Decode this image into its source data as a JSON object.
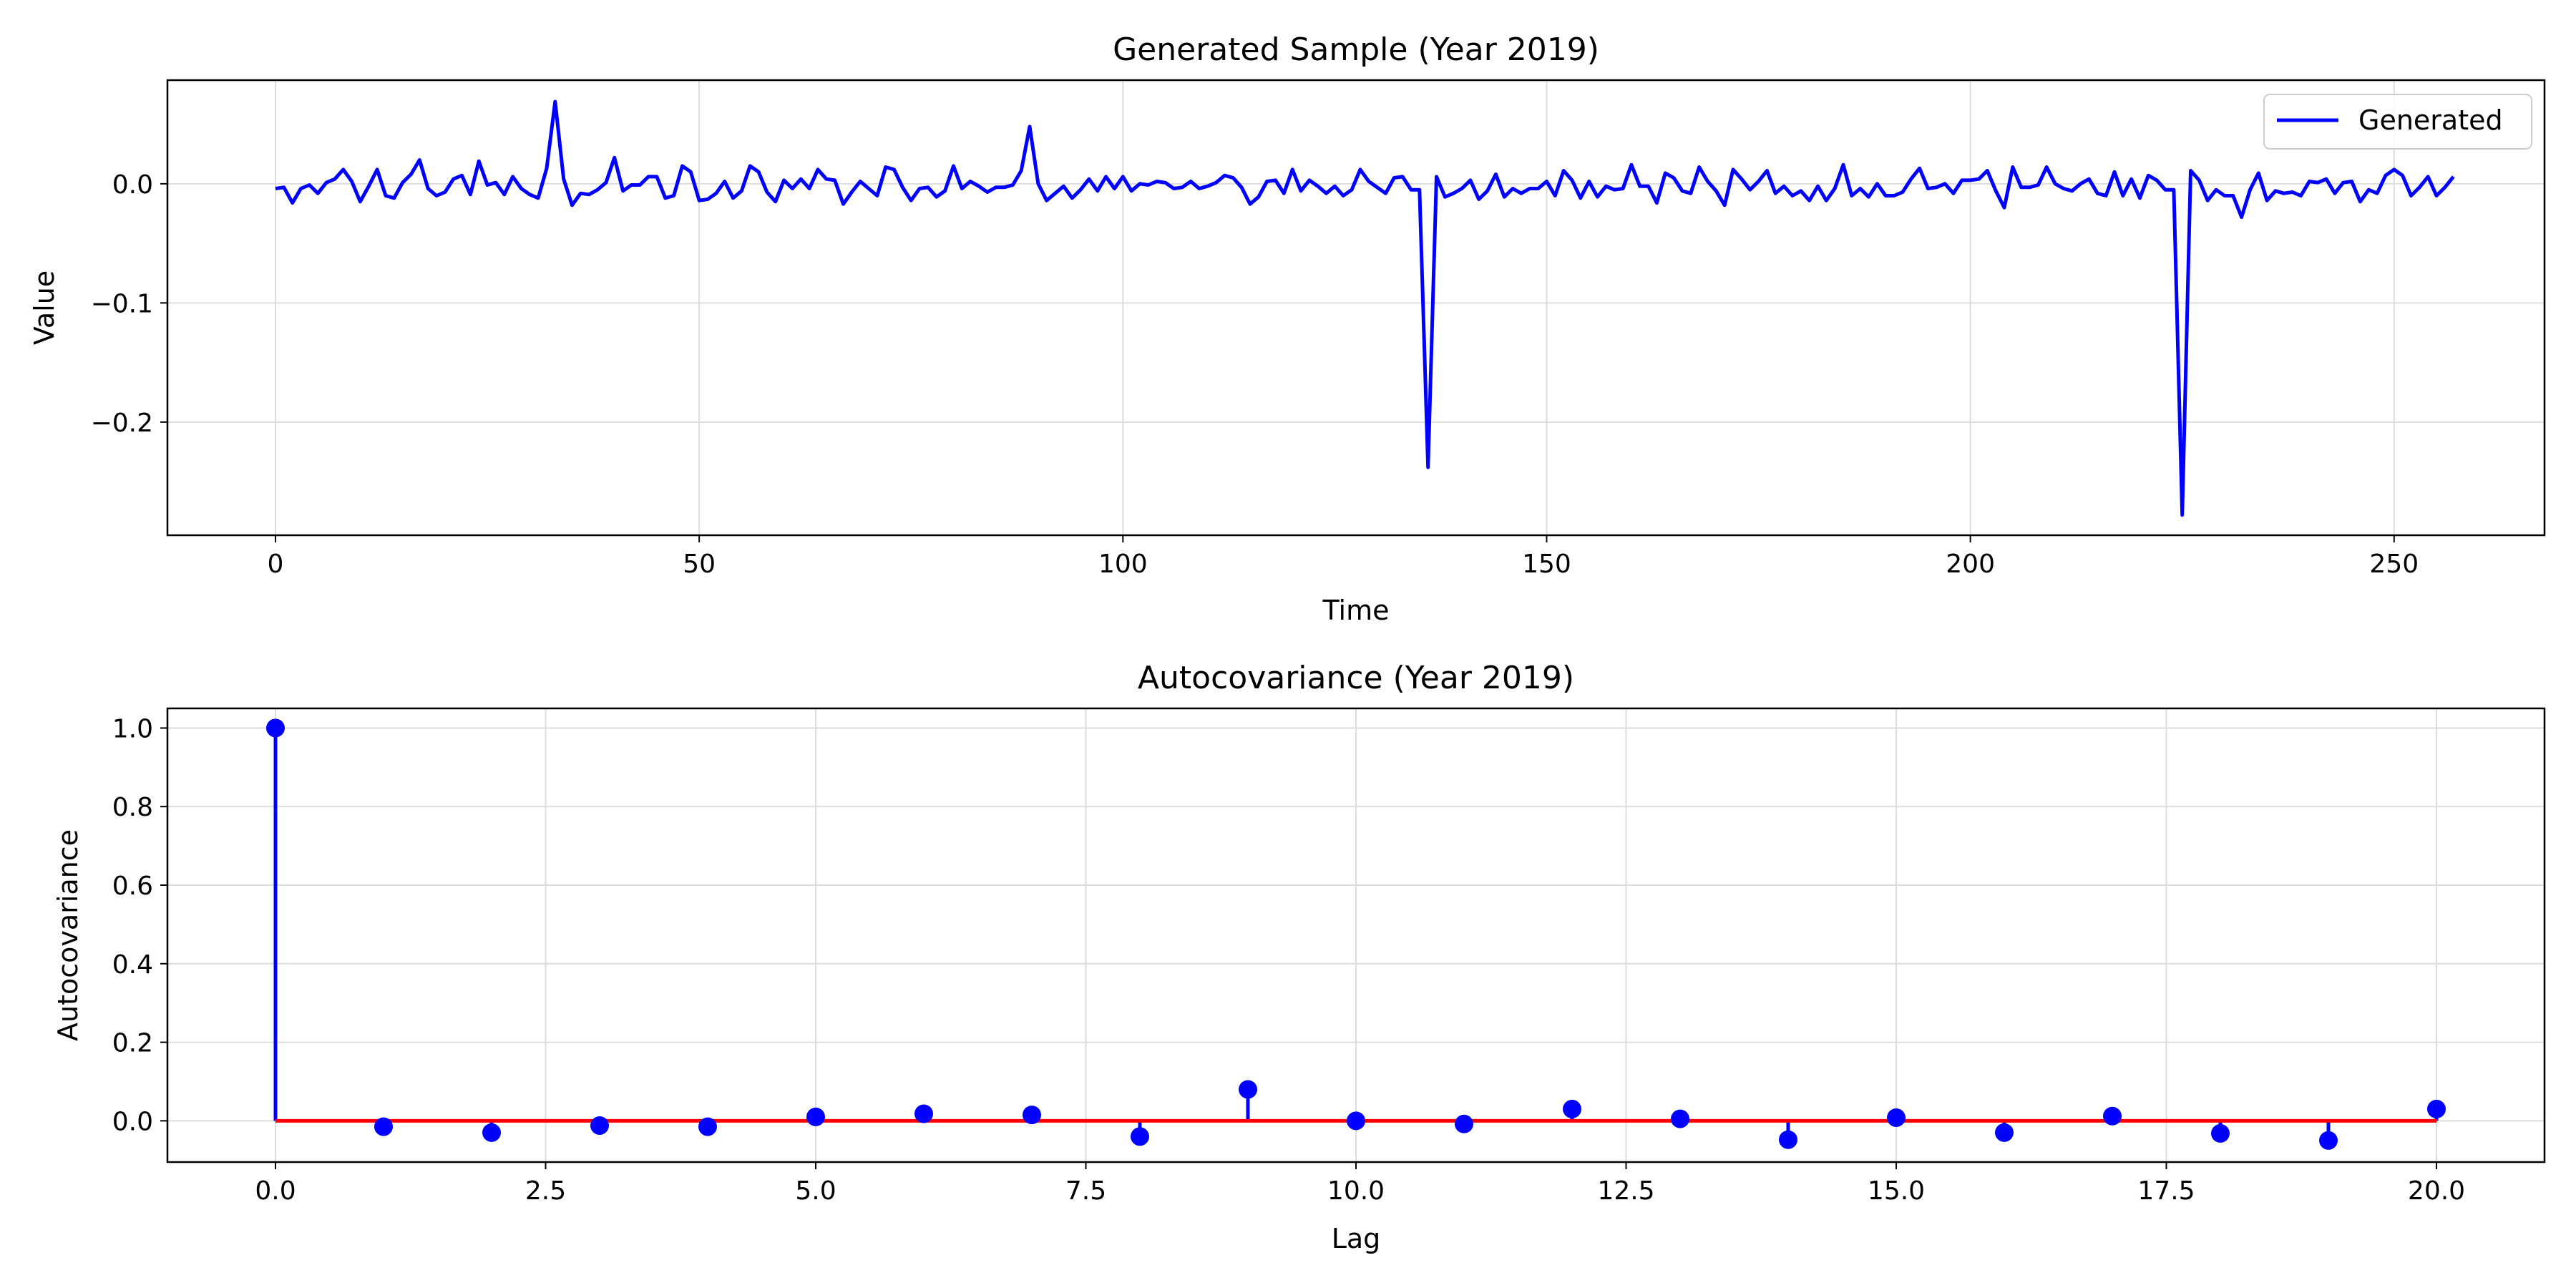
{
  "chart_data": [
    {
      "type": "line",
      "title": "Generated Sample (Year 2019)",
      "xlabel": "Time",
      "ylabel": "Value",
      "xlim": [
        -12.75,
        267.75
      ],
      "ylim": [
        -0.295,
        0.087
      ],
      "xticks": [
        0,
        50,
        100,
        150,
        200,
        250
      ],
      "yticks": [
        0.0,
        -0.1,
        -0.2
      ],
      "ytick_labels": [
        "0.0",
        "−0.1",
        "−0.2"
      ],
      "grid": true,
      "legend_position": "top-right",
      "series": [
        {
          "name": "Generated",
          "color": "#0000ff",
          "x_start": 0,
          "x_step": 1,
          "values": [
            -0.004,
            -0.003,
            -0.016,
            -0.004,
            -0.001,
            -0.008,
            0.001,
            0.004,
            0.012,
            0.002,
            -0.015,
            -0.002,
            0.012,
            -0.01,
            -0.012,
            0.001,
            0.008,
            0.02,
            -0.004,
            -0.01,
            -0.007,
            0.004,
            0.007,
            -0.009,
            0.019,
            -0.001,
            0.001,
            -0.009,
            0.006,
            -0.004,
            -0.009,
            -0.012,
            0.013,
            0.069,
            0.004,
            -0.018,
            -0.008,
            -0.009,
            -0.005,
            0.001,
            0.022,
            -0.006,
            -0.001,
            -0.001,
            0.006,
            0.006,
            -0.012,
            -0.01,
            0.015,
            0.01,
            -0.014,
            -0.013,
            -0.008,
            0.002,
            -0.012,
            -0.006,
            0.015,
            0.01,
            -0.007,
            -0.015,
            0.003,
            -0.004,
            0.004,
            -0.004,
            0.012,
            0.004,
            0.003,
            -0.017,
            -0.007,
            0.002,
            -0.004,
            -0.01,
            0.014,
            0.012,
            -0.003,
            -0.014,
            -0.004,
            -0.003,
            -0.011,
            -0.006,
            0.015,
            -0.004,
            0.002,
            -0.002,
            -0.007,
            -0.003,
            -0.003,
            -0.001,
            0.011,
            0.048,
            0.0,
            -0.014,
            -0.008,
            -0.002,
            -0.012,
            -0.005,
            0.004,
            -0.006,
            0.006,
            -0.004,
            0.006,
            -0.006,
            0.0,
            -0.001,
            0.002,
            0.001,
            -0.004,
            -0.003,
            0.002,
            -0.004,
            -0.002,
            0.001,
            0.007,
            0.005,
            -0.003,
            -0.017,
            -0.011,
            0.002,
            0.003,
            -0.008,
            0.012,
            -0.006,
            0.003,
            -0.002,
            -0.008,
            -0.002,
            -0.01,
            -0.005,
            0.012,
            0.002,
            -0.003,
            -0.008,
            0.005,
            0.006,
            -0.005,
            -0.005,
            -0.238,
            0.006,
            -0.011,
            -0.008,
            -0.004,
            0.003,
            -0.013,
            -0.006,
            0.008,
            -0.011,
            -0.004,
            -0.008,
            -0.004,
            -0.004,
            0.002,
            -0.01,
            0.011,
            0.003,
            -0.012,
            0.002,
            -0.011,
            -0.002,
            -0.005,
            -0.004,
            0.016,
            -0.002,
            -0.002,
            -0.016,
            0.009,
            0.005,
            -0.006,
            -0.008,
            0.014,
            0.002,
            -0.006,
            -0.018,
            0.012,
            0.004,
            -0.005,
            0.002,
            0.011,
            -0.008,
            -0.002,
            -0.01,
            -0.006,
            -0.014,
            -0.002,
            -0.014,
            -0.004,
            0.016,
            -0.01,
            -0.004,
            -0.011,
            0.0,
            -0.01,
            -0.01,
            -0.007,
            0.004,
            0.013,
            -0.004,
            -0.003,
            0.0,
            -0.008,
            0.003,
            0.003,
            0.004,
            0.011,
            -0.006,
            -0.02,
            0.014,
            -0.003,
            -0.003,
            -0.001,
            0.014,
            0.0,
            -0.004,
            -0.006,
            0.0,
            0.004,
            -0.008,
            -0.01,
            0.01,
            -0.01,
            0.004,
            -0.012,
            0.007,
            0.003,
            -0.005,
            -0.005,
            -0.278,
            0.011,
            0.003,
            -0.014,
            -0.005,
            -0.01,
            -0.01,
            -0.028,
            -0.005,
            0.009,
            -0.014,
            -0.006,
            -0.008,
            -0.007,
            -0.01,
            0.002,
            0.001,
            0.004,
            -0.008,
            0.001,
            0.002,
            -0.015,
            -0.005,
            -0.008,
            0.007,
            0.012,
            0.007,
            -0.01,
            -0.003,
            0.006,
            -0.01,
            -0.003,
            0.006
          ]
        }
      ]
    },
    {
      "type": "stem",
      "title": "Autocovariance (Year 2019)",
      "xlabel": "Lag",
      "ylabel": "Autocovariance",
      "xlim": [
        -1.0,
        21.0
      ],
      "ylim": [
        -0.105,
        1.05
      ],
      "xticks": [
        0.0,
        2.5,
        5.0,
        7.5,
        10.0,
        12.5,
        15.0,
        17.5,
        20.0
      ],
      "xtick_labels": [
        "0.0",
        "2.5",
        "5.0",
        "7.5",
        "10.0",
        "12.5",
        "15.0",
        "17.5",
        "20.0"
      ],
      "yticks": [
        0.0,
        0.2,
        0.4,
        0.6,
        0.8,
        1.0
      ],
      "ytick_labels": [
        "0.0",
        "0.2",
        "0.4",
        "0.6",
        "0.8",
        "1.0"
      ],
      "grid": true,
      "stem_color": "#0000ff",
      "baseline_color": "#ff0000",
      "x": [
        0,
        1,
        2,
        3,
        4,
        5,
        6,
        7,
        8,
        9,
        10,
        11,
        12,
        13,
        14,
        15,
        16,
        17,
        18,
        19,
        20
      ],
      "values": [
        1.0,
        -0.015,
        -0.03,
        -0.012,
        -0.015,
        0.01,
        0.018,
        0.015,
        -0.04,
        0.08,
        0.0,
        -0.008,
        0.03,
        0.005,
        -0.048,
        0.008,
        -0.03,
        0.012,
        -0.032,
        -0.05,
        0.03
      ]
    }
  ]
}
